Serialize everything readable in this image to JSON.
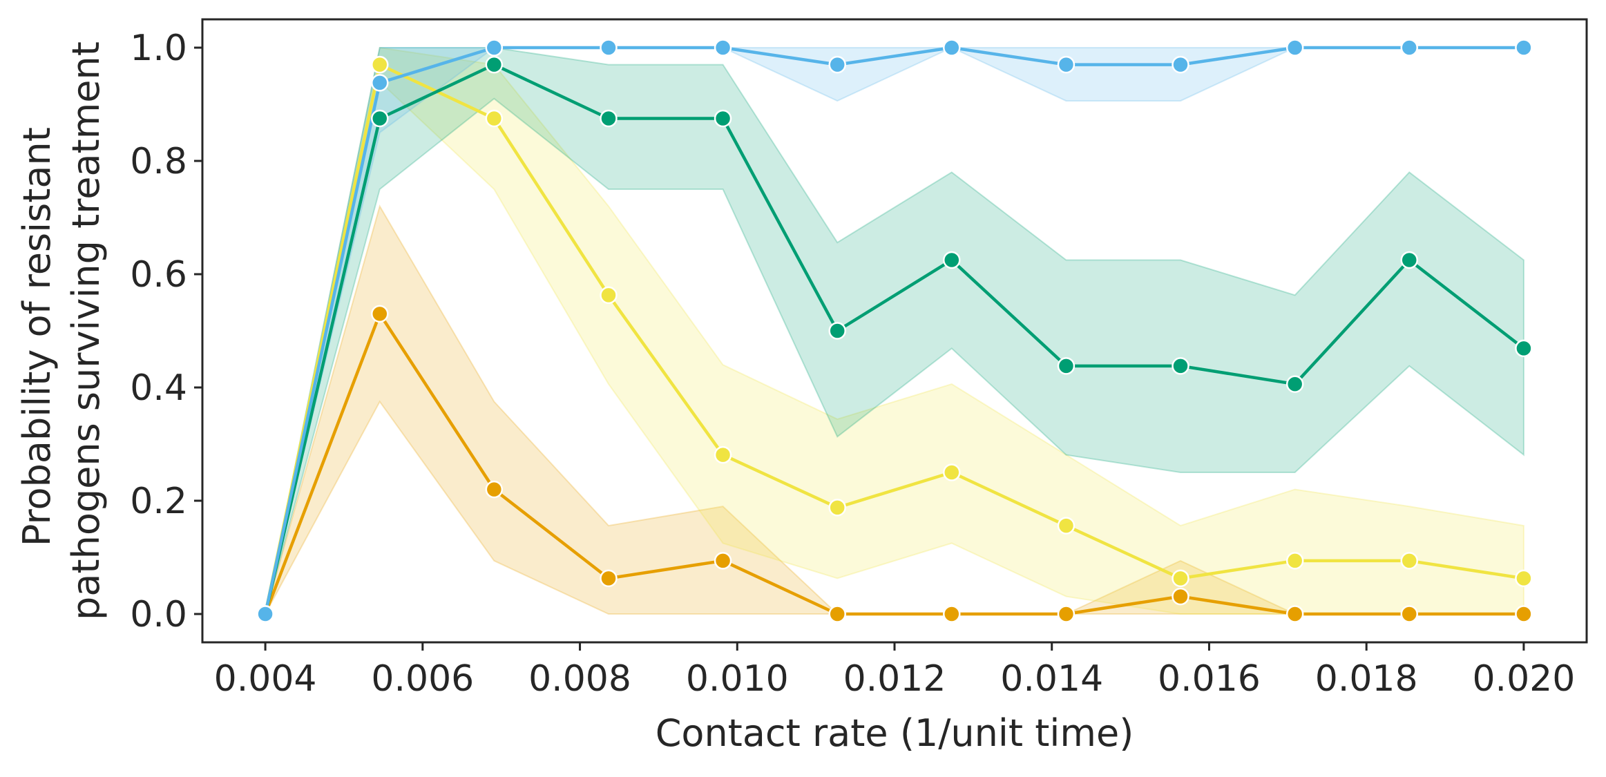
{
  "chart_data": {
    "type": "line",
    "xlabel": "Contact rate (1/unit time)",
    "ylabel": [
      "Probability of resistant",
      "pathogens surviving treatment"
    ],
    "xlim": [
      0.0032,
      0.0208
    ],
    "ylim": [
      -0.05,
      1.05
    ],
    "xticks": [
      0.004,
      0.006,
      0.008,
      0.01,
      0.012,
      0.014,
      0.016,
      0.018,
      0.02
    ],
    "xtick_labels": [
      "0.004",
      "0.006",
      "0.008",
      "0.010",
      "0.012",
      "0.014",
      "0.016",
      "0.018",
      "0.020"
    ],
    "yticks": [
      0.0,
      0.2,
      0.4,
      0.6,
      0.8,
      1.0
    ],
    "ytick_labels": [
      "0.0",
      "0.2",
      "0.4",
      "0.6",
      "0.8",
      "1.0"
    ],
    "grid": false,
    "x": [
      0.004,
      0.005455,
      0.006909,
      0.008364,
      0.009818,
      0.011273,
      0.012727,
      0.014182,
      0.015636,
      0.017091,
      0.018545,
      0.02
    ],
    "series": [
      {
        "color": "#e69f00",
        "values": [
          0.0,
          0.53,
          0.22,
          0.063,
          0.094,
          0.0,
          0.0,
          0.0,
          0.031,
          0.0,
          0.0,
          0.0
        ],
        "lower": [
          0.0,
          0.375,
          0.094,
          0.0,
          0.0,
          0.0,
          0.0,
          0.0,
          0.0,
          0.0,
          0.0,
          0.0
        ],
        "upper": [
          0.0,
          0.72,
          0.375,
          0.156,
          0.19,
          0.0,
          0.0,
          0.0,
          0.094,
          0.0,
          0.0,
          0.0
        ]
      },
      {
        "color": "#f0e442",
        "values": [
          0.0,
          0.97,
          0.875,
          0.563,
          0.281,
          0.188,
          0.25,
          0.156,
          0.063,
          0.094,
          0.094,
          0.063
        ],
        "lower": [
          0.0,
          0.94,
          0.75,
          0.406,
          0.125,
          0.063,
          0.125,
          0.031,
          0.0,
          0.0,
          0.0,
          0.0
        ],
        "upper": [
          0.0,
          1.0,
          0.97,
          0.72,
          0.44,
          0.344,
          0.406,
          0.281,
          0.156,
          0.22,
          0.19,
          0.156
        ]
      },
      {
        "color": "#009e73",
        "values": [
          0.0,
          0.875,
          0.97,
          0.875,
          0.875,
          0.5,
          0.625,
          0.438,
          0.438,
          0.406,
          0.625,
          0.469
        ],
        "lower": [
          0.0,
          0.75,
          0.91,
          0.75,
          0.75,
          0.313,
          0.469,
          0.281,
          0.25,
          0.25,
          0.438,
          0.281
        ],
        "upper": [
          0.0,
          1.0,
          1.0,
          0.97,
          0.97,
          0.656,
          0.78,
          0.625,
          0.625,
          0.563,
          0.78,
          0.625
        ]
      },
      {
        "color": "#56b4e9",
        "values": [
          0.0,
          0.938,
          1.0,
          1.0,
          1.0,
          0.97,
          1.0,
          0.97,
          0.97,
          1.0,
          1.0,
          1.0
        ],
        "lower": [
          0.0,
          0.85,
          1.0,
          1.0,
          1.0,
          0.906,
          1.0,
          0.906,
          0.906,
          1.0,
          1.0,
          1.0
        ],
        "upper": [
          0.0,
          1.0,
          1.0,
          1.0,
          1.0,
          1.0,
          1.0,
          1.0,
          1.0,
          1.0,
          1.0,
          1.0
        ]
      }
    ]
  }
}
